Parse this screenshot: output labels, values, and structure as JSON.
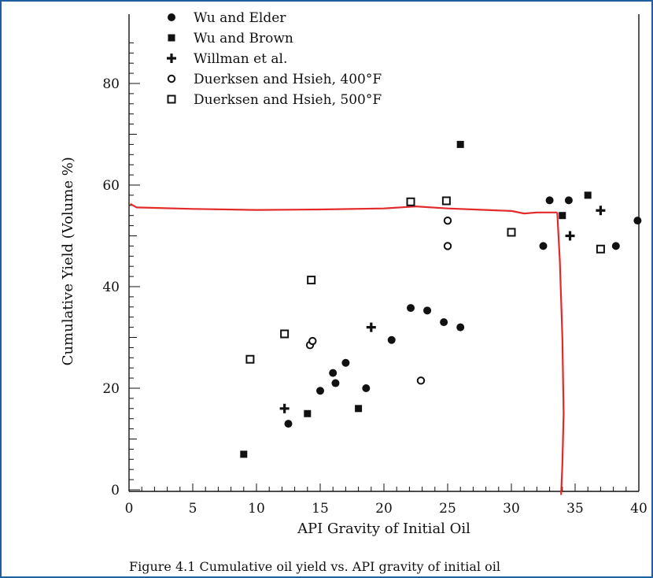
{
  "chart_data": {
    "type": "scatter",
    "xlabel": "API Gravity of Initial Oil",
    "ylabel": "Cumulative Yield (Volume %)",
    "xlim": [
      0,
      40
    ],
    "ylim": [
      0,
      90
    ],
    "xticks": [
      0,
      5,
      10,
      15,
      20,
      25,
      30,
      35,
      40
    ],
    "yticks": [
      0,
      20,
      40,
      60,
      80
    ],
    "legend_position": "top-left",
    "series": [
      {
        "name": "Wu and Elder",
        "marker": "filled-circle",
        "points": [
          [
            12.5,
            13
          ],
          [
            15,
            19.5
          ],
          [
            16,
            23
          ],
          [
            16.2,
            21
          ],
          [
            17,
            25
          ],
          [
            18.6,
            20
          ],
          [
            20.6,
            29.5
          ],
          [
            22.1,
            35.8
          ],
          [
            23.4,
            35.3
          ],
          [
            24.7,
            33
          ],
          [
            26,
            32
          ],
          [
            32.5,
            48
          ],
          [
            33,
            57
          ],
          [
            34.5,
            57
          ],
          [
            38.2,
            48
          ],
          [
            39.9,
            53
          ]
        ]
      },
      {
        "name": "Wu and Brown",
        "marker": "filled-square",
        "points": [
          [
            9,
            7
          ],
          [
            14,
            15
          ],
          [
            18,
            16
          ],
          [
            26,
            68
          ],
          [
            34,
            54
          ],
          [
            36,
            58
          ]
        ]
      },
      {
        "name": "Willman et al.",
        "marker": "plus",
        "points": [
          [
            12.2,
            16
          ],
          [
            19,
            32
          ],
          [
            34.6,
            50
          ],
          [
            37,
            55
          ]
        ]
      },
      {
        "name": "Duerksen and Hsieh, 400°F",
        "marker": "open-circle",
        "points": [
          [
            14.2,
            28.5
          ],
          [
            14.4,
            29.3
          ],
          [
            22.9,
            21.5
          ],
          [
            25,
            53
          ],
          [
            25,
            48
          ]
        ]
      },
      {
        "name": "Duerksen and Hsieh, 500°F",
        "marker": "open-square",
        "points": [
          [
            9.5,
            25.7
          ],
          [
            12.2,
            30.7
          ],
          [
            14.3,
            41.3
          ],
          [
            22.1,
            56.7
          ],
          [
            24.9,
            56.9
          ],
          [
            30,
            50.7
          ],
          [
            37,
            47.4
          ]
        ]
      }
    ],
    "annotations": {
      "horizontal_line_y": [
        [
          0.1,
          56.3
        ],
        [
          0.6,
          55.6
        ],
        [
          5,
          55.3
        ],
        [
          10,
          55.1
        ],
        [
          15,
          55.2
        ],
        [
          20,
          55.4
        ],
        [
          22.5,
          55.8
        ],
        [
          25,
          55.4
        ],
        [
          28,
          55.1
        ],
        [
          30,
          54.9
        ],
        [
          31,
          54.4
        ],
        [
          32,
          54.6
        ],
        [
          33.6,
          54.6
        ]
      ],
      "vertical_line_x": [
        [
          33.6,
          54.6
        ],
        [
          33.8,
          45
        ],
        [
          34,
          30
        ],
        [
          34.1,
          15
        ],
        [
          34,
          5
        ],
        [
          33.9,
          -1
        ]
      ],
      "color": "#e32a2a"
    }
  },
  "caption": "Figure 4.1   Cumulative oil yield vs. API gravity of initial oil"
}
